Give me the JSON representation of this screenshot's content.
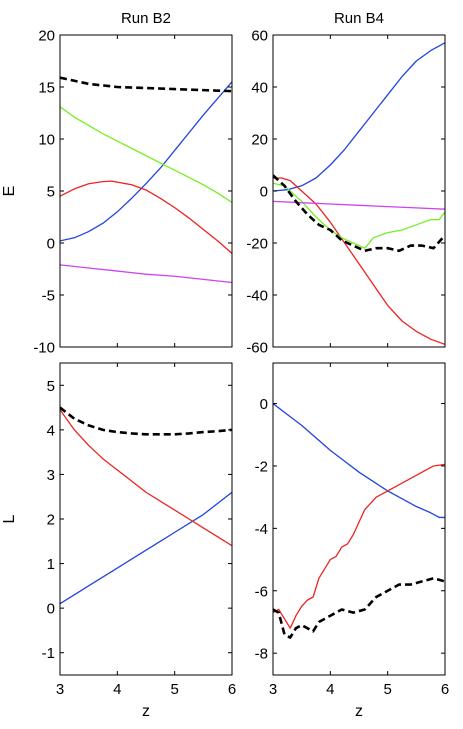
{
  "chart_data": [
    {
      "type": "line",
      "title": "Run B2",
      "xlabel": "",
      "ylabel": "E",
      "xlim": [
        3,
        6
      ],
      "ylim": [
        -10,
        20
      ],
      "xticks": [
        3,
        4,
        5,
        6
      ],
      "yticks": [
        -10,
        -5,
        0,
        5,
        10,
        15,
        20
      ],
      "show_xtick_labels": false,
      "series": [
        {
          "color": "#2244dd",
          "style": "solid",
          "x": [
            3.0,
            3.25,
            3.5,
            3.75,
            4.0,
            4.25,
            4.5,
            4.75,
            5.0,
            5.25,
            5.5,
            5.75,
            6.0
          ],
          "y": [
            0.2,
            0.5,
            1.1,
            1.9,
            3.0,
            4.3,
            5.7,
            7.2,
            8.9,
            10.6,
            12.3,
            13.9,
            15.5
          ]
        },
        {
          "color": "#ee2222",
          "style": "solid",
          "x": [
            3.0,
            3.25,
            3.5,
            3.75,
            3.9,
            4.25,
            4.5,
            4.75,
            5.0,
            5.25,
            5.5,
            5.75,
            6.0
          ],
          "y": [
            4.5,
            5.2,
            5.7,
            5.9,
            5.95,
            5.6,
            5.1,
            4.3,
            3.4,
            2.4,
            1.3,
            0.2,
            -1.0
          ]
        },
        {
          "color": "#77ee22",
          "style": "solid",
          "x": [
            3.0,
            3.25,
            3.5,
            3.75,
            4.0,
            4.25,
            4.5,
            4.75,
            5.0,
            5.25,
            5.5,
            5.75,
            6.0
          ],
          "y": [
            13.1,
            12.1,
            11.3,
            10.5,
            9.8,
            9.1,
            8.4,
            7.7,
            7.0,
            6.3,
            5.6,
            4.8,
            3.9
          ]
        },
        {
          "color": "#cc44ee",
          "style": "solid",
          "x": [
            3.0,
            3.5,
            4.0,
            4.5,
            5.0,
            5.5,
            6.0
          ],
          "y": [
            -2.1,
            -2.4,
            -2.7,
            -3.0,
            -3.2,
            -3.5,
            -3.8
          ]
        },
        {
          "color": "#000000",
          "style": "dashed",
          "x": [
            3.0,
            3.25,
            3.5,
            3.75,
            4.0,
            4.25,
            4.5,
            4.75,
            5.0,
            5.25,
            5.5,
            5.75,
            6.0
          ],
          "y": [
            15.9,
            15.6,
            15.3,
            15.15,
            15.0,
            14.95,
            14.9,
            14.85,
            14.8,
            14.75,
            14.7,
            14.65,
            14.6
          ]
        }
      ]
    },
    {
      "type": "line",
      "title": "Run B4",
      "xlabel": "",
      "ylabel": "",
      "xlim": [
        3,
        6
      ],
      "ylim": [
        -60,
        60
      ],
      "xticks": [
        3,
        4,
        5,
        6
      ],
      "yticks": [
        -60,
        -40,
        -20,
        0,
        20,
        40,
        60
      ],
      "show_xtick_labels": false,
      "series": [
        {
          "color": "#2244dd",
          "style": "solid",
          "x": [
            3.0,
            3.25,
            3.5,
            3.75,
            4.0,
            4.25,
            4.5,
            4.75,
            5.0,
            5.25,
            5.5,
            5.75,
            6.0
          ],
          "y": [
            0,
            0.5,
            2,
            5,
            10,
            16,
            23,
            30,
            37,
            44,
            50,
            54,
            57
          ]
        },
        {
          "color": "#ee2222",
          "style": "solid",
          "x": [
            3.0,
            3.15,
            3.3,
            3.5,
            3.75,
            4.0,
            4.25,
            4.5,
            4.75,
            5.0,
            5.25,
            5.5,
            5.75,
            6.0
          ],
          "y": [
            5,
            5,
            4,
            0,
            -5,
            -12,
            -20,
            -28,
            -36,
            -44,
            -50,
            -54,
            -57,
            -59
          ]
        },
        {
          "color": "#77ee22",
          "style": "solid",
          "x": [
            3.0,
            3.2,
            3.5,
            3.75,
            4.0,
            4.2,
            4.4,
            4.6,
            4.75,
            5.0,
            5.25,
            5.5,
            5.75,
            5.9,
            6.0
          ],
          "y": [
            3,
            2,
            -4,
            -10,
            -15,
            -18,
            -20,
            -22,
            -18,
            -16,
            -15,
            -13,
            -11,
            -11,
            -8
          ]
        },
        {
          "color": "#cc44ee",
          "style": "solid",
          "x": [
            3.0,
            3.5,
            4.0,
            4.5,
            5.0,
            5.5,
            6.0
          ],
          "y": [
            -4,
            -4.5,
            -5,
            -5.5,
            -6,
            -6.5,
            -7
          ]
        },
        {
          "color": "#000000",
          "style": "dashed",
          "x": [
            3.0,
            3.2,
            3.4,
            3.6,
            3.8,
            4.0,
            4.2,
            4.4,
            4.6,
            4.8,
            5.0,
            5.2,
            5.4,
            5.6,
            5.8,
            6.0
          ],
          "y": [
            6,
            2,
            -4,
            -9,
            -13,
            -15,
            -19,
            -21,
            -23,
            -22,
            -22,
            -23,
            -21,
            -21,
            -22,
            -17
          ]
        }
      ]
    },
    {
      "type": "line",
      "title": "",
      "xlabel": "z",
      "ylabel": "L",
      "xlim": [
        3,
        6
      ],
      "ylim": [
        -1.5,
        5.5
      ],
      "xticks": [
        3,
        4,
        5,
        6
      ],
      "yticks": [
        -1,
        0,
        1,
        2,
        3,
        4,
        5
      ],
      "show_xtick_labels": true,
      "series": [
        {
          "color": "#2244dd",
          "style": "solid",
          "x": [
            3.0,
            3.25,
            3.5,
            3.75,
            4.0,
            4.25,
            4.5,
            4.75,
            5.0,
            5.25,
            5.5,
            5.75,
            6.0
          ],
          "y": [
            0.1,
            0.3,
            0.5,
            0.7,
            0.9,
            1.1,
            1.3,
            1.5,
            1.7,
            1.9,
            2.1,
            2.35,
            2.6
          ]
        },
        {
          "color": "#ee2222",
          "style": "solid",
          "x": [
            3.0,
            3.25,
            3.5,
            3.75,
            4.0,
            4.25,
            4.5,
            4.75,
            5.0,
            5.25,
            5.5,
            5.75,
            6.0
          ],
          "y": [
            4.45,
            4.0,
            3.65,
            3.35,
            3.1,
            2.85,
            2.6,
            2.4,
            2.2,
            2.0,
            1.8,
            1.6,
            1.4
          ]
        },
        {
          "color": "#000000",
          "style": "dashed",
          "x": [
            3.0,
            3.25,
            3.5,
            3.75,
            4.0,
            4.25,
            4.5,
            4.75,
            5.0,
            5.25,
            5.5,
            5.75,
            6.0
          ],
          "y": [
            4.5,
            4.25,
            4.1,
            4.0,
            3.95,
            3.92,
            3.9,
            3.9,
            3.9,
            3.92,
            3.95,
            3.97,
            4.0
          ]
        }
      ]
    },
    {
      "type": "line",
      "title": "",
      "xlabel": "z",
      "ylabel": "",
      "xlim": [
        3,
        6
      ],
      "ylim": [
        -8.7,
        1.3
      ],
      "xticks": [
        3,
        4,
        5,
        6
      ],
      "yticks": [
        -8,
        -6,
        -4,
        -2,
        0
      ],
      "show_xtick_labels": true,
      "series": [
        {
          "color": "#2244dd",
          "style": "solid",
          "x": [
            3.0,
            3.25,
            3.5,
            3.75,
            4.0,
            4.25,
            4.5,
            4.75,
            5.0,
            5.25,
            5.5,
            5.75,
            5.9,
            6.0
          ],
          "y": [
            0.0,
            -0.35,
            -0.7,
            -1.1,
            -1.5,
            -1.85,
            -2.2,
            -2.5,
            -2.8,
            -3.05,
            -3.3,
            -3.5,
            -3.65,
            -3.65
          ]
        },
        {
          "color": "#ee2222",
          "style": "solid",
          "x": [
            3.0,
            3.1,
            3.2,
            3.3,
            3.4,
            3.5,
            3.6,
            3.7,
            3.8,
            3.9,
            4.0,
            4.1,
            4.2,
            4.3,
            4.4,
            4.5,
            4.6,
            4.7,
            4.8,
            4.9,
            5.0,
            5.2,
            5.4,
            5.6,
            5.8,
            6.0
          ],
          "y": [
            -6.7,
            -6.6,
            -6.9,
            -7.2,
            -6.8,
            -6.5,
            -6.3,
            -6.2,
            -5.6,
            -5.3,
            -5.0,
            -4.9,
            -4.6,
            -4.5,
            -4.2,
            -3.8,
            -3.4,
            -3.2,
            -3.0,
            -2.9,
            -2.8,
            -2.6,
            -2.4,
            -2.2,
            -2.0,
            -1.95
          ]
        },
        {
          "color": "#000000",
          "style": "dashed",
          "x": [
            3.0,
            3.1,
            3.2,
            3.3,
            3.4,
            3.5,
            3.6,
            3.7,
            3.8,
            3.9,
            4.0,
            4.2,
            4.4,
            4.6,
            4.8,
            5.0,
            5.2,
            5.4,
            5.6,
            5.8,
            6.0
          ],
          "y": [
            -6.6,
            -6.7,
            -7.4,
            -7.5,
            -7.2,
            -7.1,
            -7.2,
            -7.3,
            -7.0,
            -6.9,
            -6.8,
            -6.6,
            -6.7,
            -6.6,
            -6.2,
            -6.0,
            -5.8,
            -5.8,
            -5.7,
            -5.6,
            -5.7
          ]
        }
      ]
    }
  ]
}
